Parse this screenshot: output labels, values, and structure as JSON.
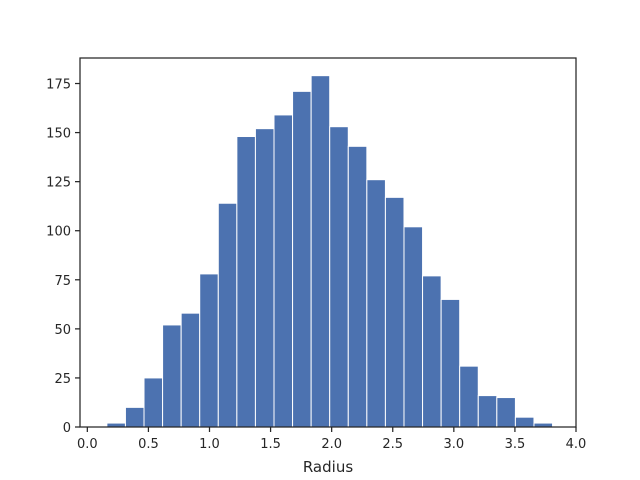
{
  "chart_data": {
    "type": "bar",
    "subtype": "histogram",
    "title": "",
    "xlabel": "Radius",
    "ylabel": "",
    "xlim": [
      -0.06,
      4.0
    ],
    "ylim": [
      0,
      188
    ],
    "xticks": [
      0.0,
      0.5,
      1.0,
      1.5,
      2.0,
      2.5,
      3.0,
      3.5,
      4.0
    ],
    "xtick_labels": [
      "0.0",
      "0.5",
      "1.0",
      "1.5",
      "2.0",
      "2.5",
      "3.0",
      "3.5",
      "4.0"
    ],
    "yticks": [
      0,
      25,
      50,
      75,
      100,
      125,
      150,
      175
    ],
    "ytick_labels": [
      "0",
      "25",
      "50",
      "75",
      "100",
      "125",
      "150",
      "175"
    ],
    "grid": false,
    "legend": "none",
    "bar_color": "#4c72b0",
    "bin_edges": [
      0.16,
      0.312,
      0.464,
      0.616,
      0.768,
      0.92,
      1.072,
      1.224,
      1.376,
      1.528,
      1.68,
      1.832,
      1.984,
      2.136,
      2.288,
      2.44,
      2.592,
      2.744,
      2.896,
      3.048,
      3.2,
      3.352,
      3.504,
      3.656,
      3.808
    ],
    "values": [
      2,
      10,
      25,
      52,
      58,
      78,
      114,
      148,
      152,
      159,
      171,
      179,
      153,
      143,
      126,
      117,
      102,
      77,
      65,
      31,
      16,
      15,
      5,
      2
    ]
  }
}
